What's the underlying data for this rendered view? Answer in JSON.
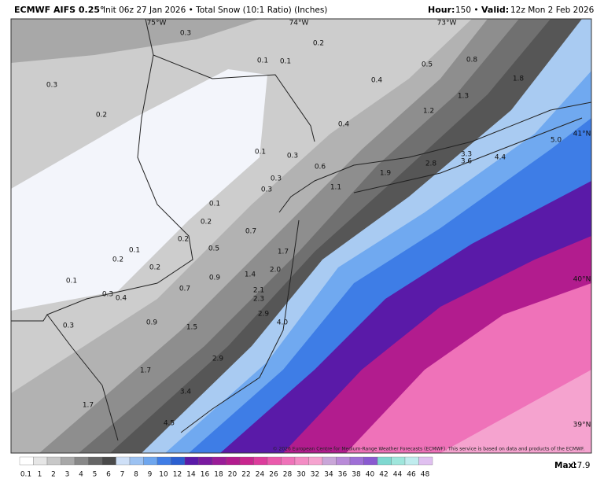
{
  "header": {
    "title": "ECMWF AIFS 0.25°",
    "subtitle": "Init 06z 27 Jan 2026 • Total Snow (10:1 Ratio) (Inches)",
    "hour_label": "Hour:",
    "hour_value": "150 •",
    "valid_label": "Valid:",
    "valid_value": "12z Mon 2 Feb 2026"
  },
  "map": {
    "lon_labels": [
      "75°W",
      "74°W",
      "73°W"
    ],
    "lat_labels": [
      "41°N",
      "40°N",
      "39°N"
    ],
    "value_labels": [
      "0.3",
      "0.2",
      "0.1",
      "0.1",
      "0.3",
      "0.2",
      "0.4",
      "0.5",
      "0.8",
      "1.8",
      "1.3",
      "1.2",
      "0.4",
      "0.1",
      "0.3",
      "0.6",
      "0.3",
      "0.3",
      "1.1",
      "1.9",
      "2.8",
      "3.3",
      "3.6",
      "4.4",
      "5.0",
      "0.1",
      "0.2",
      "0.7",
      "0.2",
      "0.1",
      "0.5",
      "1.7",
      "0.2",
      "2.0",
      "0.2",
      "1.4",
      "0.9",
      "0.1",
      "0.7",
      "2.1",
      "2.3",
      "0.3",
      "0.4",
      "2.9",
      "4.0",
      "0.9",
      "1.5",
      "0.3",
      "2.9",
      "1.7",
      "3.4",
      "1.7",
      "4.5"
    ],
    "credit": "© 2026 European Centre for Medium-Range Weather Forecasts (ECMWF). This service is based on data and products of the ECMWF."
  },
  "legend": {
    "labels": [
      "0.1",
      "1",
      "2",
      "3",
      "4",
      "5",
      "6",
      "7",
      "8",
      "9",
      "10",
      "12",
      "14",
      "16",
      "18",
      "20",
      "22",
      "24",
      "26",
      "28",
      "30",
      "32",
      "34",
      "36",
      "38",
      "40",
      "42",
      "44",
      "46",
      "48"
    ],
    "max_label": "Max:",
    "max_value": "17.9"
  }
}
